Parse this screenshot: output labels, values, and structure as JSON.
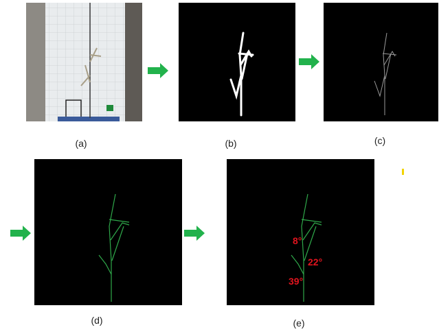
{
  "panel_labels": [
    "(a)",
    "(b)",
    "(c)",
    "(d)",
    "(e)"
  ],
  "angle_labels": [
    "8°",
    "22°",
    "39°"
  ]
}
